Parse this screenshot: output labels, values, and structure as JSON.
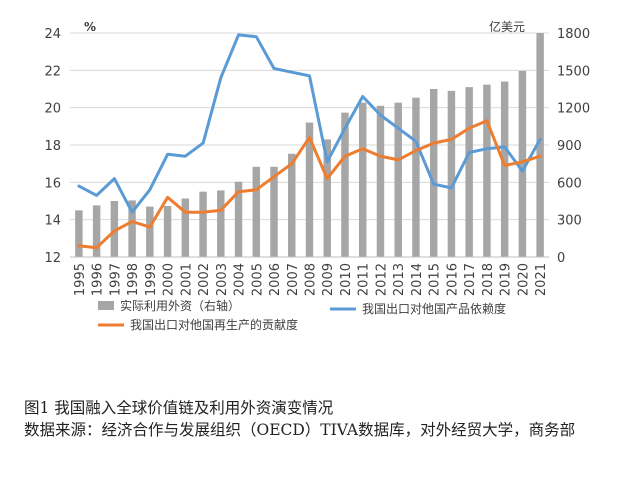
{
  "chart_data": {
    "type": "bar",
    "categories": [
      "1995",
      "1996",
      "1997",
      "1998",
      "1999",
      "2000",
      "2001",
      "2002",
      "2003",
      "2004",
      "2005",
      "2006",
      "2007",
      "2008",
      "2009",
      "2010",
      "2011",
      "2012",
      "2013",
      "2014",
      "2015",
      "2016",
      "2017",
      "2018",
      "2019",
      "2020",
      "2021"
    ],
    "left_axis": {
      "unit": "%",
      "ylim": [
        12,
        24
      ],
      "ticks": [
        "12",
        "14",
        "16",
        "18",
        "20",
        "22",
        "24"
      ]
    },
    "right_axis": {
      "unit": "亿美元",
      "ylim": [
        0,
        1800
      ],
      "ticks": [
        "0",
        "300",
        "600",
        "900",
        "1200",
        "1500",
        "1800"
      ]
    },
    "grid": true,
    "legend_position": "bottom",
    "series": [
      {
        "name": "实际利用外资（右轴）",
        "type": "bar",
        "axis": "right",
        "color": "#a6a6a6",
        "values": [
          375,
          415,
          450,
          455,
          405,
          410,
          470,
          525,
          535,
          605,
          725,
          725,
          830,
          1080,
          945,
          1160,
          1240,
          1215,
          1240,
          1280,
          1350,
          1335,
          1365,
          1385,
          1410,
          1495,
          1800
        ]
      },
      {
        "name": "我国出口对他国产品依赖度",
        "type": "line",
        "axis": "left",
        "color": "#5b9bd5",
        "values": [
          15.8,
          15.3,
          16.2,
          14.4,
          15.6,
          17.5,
          17.4,
          18.1,
          21.6,
          23.9,
          23.8,
          22.1,
          21.9,
          21.7,
          17.1,
          18.9,
          20.6,
          19.6,
          18.9,
          18.2,
          15.9,
          15.7,
          17.6,
          17.8,
          17.9,
          16.6,
          18.3
        ]
      },
      {
        "name": "我国出口对他国再生产的贡献度",
        "type": "line",
        "axis": "left",
        "color": "#ed7d31",
        "values": [
          12.6,
          12.5,
          13.4,
          13.9,
          13.6,
          15.2,
          14.4,
          14.4,
          14.5,
          15.5,
          15.6,
          16.3,
          17.0,
          18.4,
          16.2,
          17.4,
          17.8,
          17.4,
          17.2,
          17.7,
          18.1,
          18.3,
          18.9,
          19.3,
          16.9,
          17.1,
          17.4
        ]
      }
    ]
  },
  "caption": {
    "line1": "图1  我国融入全球价值链及利用外资演变情况",
    "line2": "数据来源：经济合作与发展组织（OECD）TIVA数据库，对外经贸大学，商务部"
  }
}
